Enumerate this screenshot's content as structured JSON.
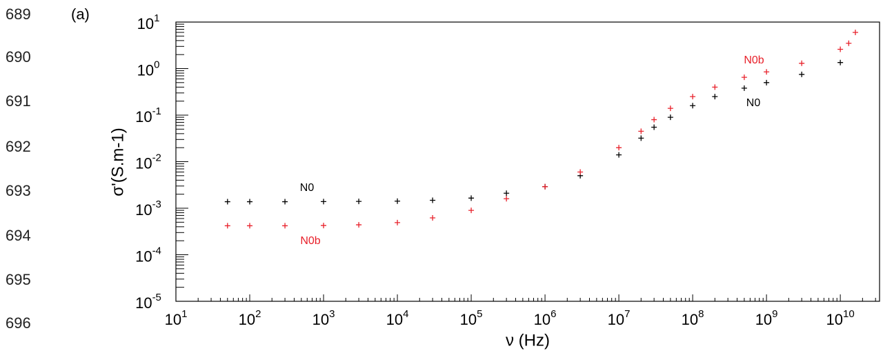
{
  "line_numbers": [
    "689",
    "690",
    "691",
    "692",
    "693",
    "694",
    "695",
    "696"
  ],
  "chart_data": {
    "type": "scatter",
    "panel_label": "(a)",
    "xlabel": "ν (Hz)",
    "ylabel": "σ'(S.m-1)",
    "xscale": "log",
    "yscale": "log",
    "xlim": [
      10,
      34000000000.0
    ],
    "ylim": [
      1e-05,
      10
    ],
    "xticks": [
      {
        "value": 10,
        "label": "10^1"
      },
      {
        "value": 100,
        "label": "10^2"
      },
      {
        "value": 1000,
        "label": "10^3"
      },
      {
        "value": 10000,
        "label": "10^4"
      },
      {
        "value": 100000,
        "label": "10^5"
      },
      {
        "value": 1000000,
        "label": "10^6"
      },
      {
        "value": 10000000,
        "label": "10^7"
      },
      {
        "value": 100000000,
        "label": "10^8"
      },
      {
        "value": 1000000000,
        "label": "10^9"
      },
      {
        "value": 10000000000,
        "label": "10^10"
      }
    ],
    "yticks": [
      {
        "value": 1e-05,
        "label": "10^-5"
      },
      {
        "value": 0.0001,
        "label": "10^-4"
      },
      {
        "value": 0.001,
        "label": "10^-3"
      },
      {
        "value": 0.01,
        "label": "10^-2"
      },
      {
        "value": 0.1,
        "label": "10^-1"
      },
      {
        "value": 1,
        "label": "10^0"
      },
      {
        "value": 10,
        "label": "10^1"
      }
    ],
    "series": [
      {
        "name": "N0",
        "color": "#000000",
        "x": [
          50.0,
          100.0,
          300.0,
          1000.0,
          3000.0,
          10000.0,
          30000.0,
          100000.0,
          300000.0,
          1000000.0,
          3000000.0,
          10000000.0,
          20000000.0,
          30000000.0,
          50000000.0,
          100000000.0,
          200000000.0,
          500000000.0,
          1000000000.0,
          3000000000.0,
          10000000000.0
        ],
        "values": [
          0.00138,
          0.00138,
          0.00138,
          0.00139,
          0.0014,
          0.00142,
          0.00148,
          0.00165,
          0.0021,
          0.0029,
          0.005,
          0.014,
          0.032,
          0.055,
          0.09,
          0.16,
          0.25,
          0.38,
          0.5,
          0.75,
          1.35
        ]
      },
      {
        "name": "N0b",
        "color": "#e8202a",
        "x": [
          50.0,
          100.0,
          300.0,
          1000.0,
          3000.0,
          10000.0,
          30000.0,
          100000.0,
          300000.0,
          1000000.0,
          3000000.0,
          10000000.0,
          20000000.0,
          30000000.0,
          50000000.0,
          100000000.0,
          200000000.0,
          500000000.0,
          1000000000.0,
          3000000000.0,
          10000000000.0,
          13000000000.0,
          16000000000.0
        ],
        "values": [
          0.00042,
          0.00042,
          0.00042,
          0.000425,
          0.00044,
          0.00049,
          0.00062,
          0.0009,
          0.0016,
          0.0029,
          0.006,
          0.02,
          0.045,
          0.08,
          0.14,
          0.25,
          0.4,
          0.65,
          0.85,
          1.3,
          2.6,
          3.5,
          6
        ]
      }
    ],
    "annotations": [
      "N0",
      "N0b",
      "N0b",
      "N0"
    ]
  }
}
